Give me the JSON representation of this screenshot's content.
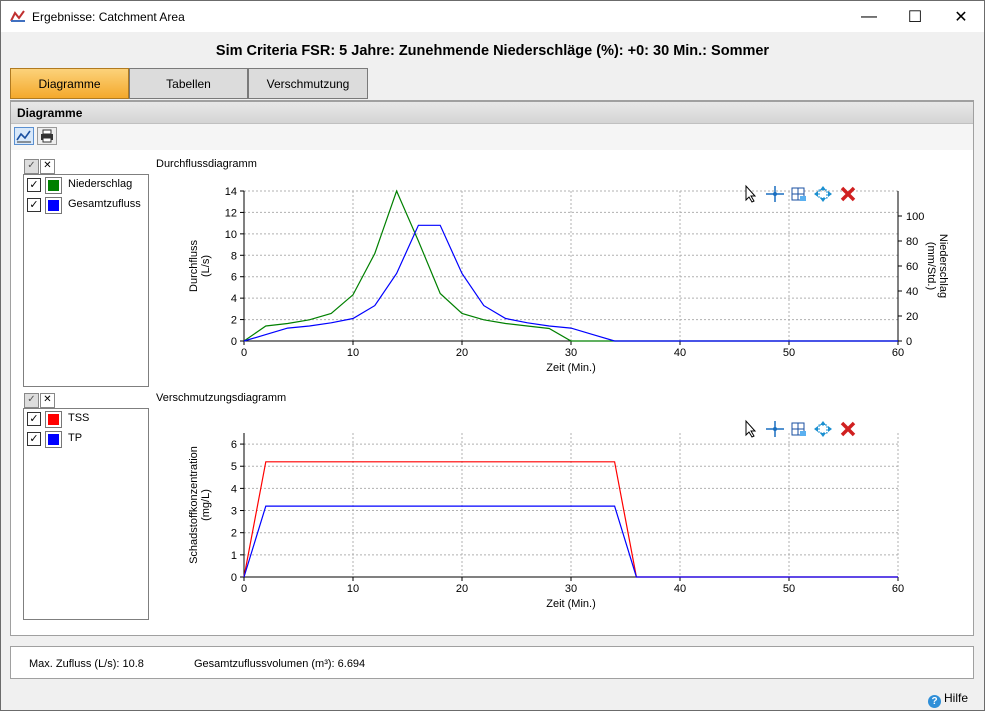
{
  "window": {
    "title": "Ergebnisse: Catchment Area",
    "minimize": "—",
    "maximize": "☐",
    "close": "✕"
  },
  "header": {
    "title": "Sim Criteria FSR: 5 Jahre: Zunehmende Niederschläge (%): +0:  30 Min.: Sommer"
  },
  "tabs": [
    {
      "label": "Diagramme"
    },
    {
      "label": "Tabellen"
    },
    {
      "label": "Verschmutzung"
    }
  ],
  "section": {
    "title": "Diagramme"
  },
  "icons": {
    "line_chart": "line-chart-icon",
    "printer": "printer-icon",
    "pointer": "pointer-icon",
    "crosshair": "crosshair-icon",
    "zoom": "zoom-icon",
    "pan": "pan-icon",
    "close": "close-icon"
  },
  "legend_head": {
    "check": "✓",
    "x": "✕"
  },
  "legends": {
    "flow": [
      {
        "label": "Niederschlag",
        "color": "#008000",
        "check": "✓"
      },
      {
        "label": "Gesamtzufluss",
        "color": "#0000ff",
        "check": "✓"
      }
    ],
    "pollution": [
      {
        "label": "TSS",
        "color": "#ff0000",
        "check": "✓"
      },
      {
        "label": "TP",
        "color": "#0000ff",
        "check": "✓"
      }
    ]
  },
  "chart_data": [
    {
      "type": "line",
      "title": "Durchflussdiagramm",
      "xlabel": "Zeit (Min.)",
      "ylabel": "Durchfluss (L/s)",
      "ylabel_lines": [
        "Durchfluss",
        "(L/s)"
      ],
      "y2label": "Niederschlag (mm/Std.)",
      "y2label_lines": [
        "Niederschlag",
        "(mm/Std.)"
      ],
      "xlim": [
        0,
        60
      ],
      "ylim": [
        0,
        14
      ],
      "y2lim": [
        0,
        120
      ],
      "xticks": [
        0,
        10,
        20,
        30,
        40,
        50,
        60
      ],
      "yticks": [
        0,
        2,
        4,
        6,
        8,
        10,
        12,
        14
      ],
      "y2ticks": [
        0,
        20,
        40,
        60,
        80,
        100
      ],
      "grid": true,
      "series": [
        {
          "name": "Niederschlag",
          "color": "#008000",
          "axis": "y2",
          "x": [
            0,
            2,
            4,
            6,
            8,
            10,
            12,
            14,
            16,
            18,
            20,
            22,
            24,
            26,
            28,
            30,
            32,
            34,
            60
          ],
          "y": [
            0,
            12,
            14,
            17,
            22,
            37,
            70,
            120,
            80,
            38,
            22,
            17,
            14,
            12,
            10,
            0,
            0,
            0,
            0
          ]
        },
        {
          "name": "Gesamtzufluss",
          "color": "#0000ff",
          "axis": "y",
          "x": [
            0,
            2,
            4,
            6,
            8,
            10,
            12,
            14,
            16,
            18,
            20,
            22,
            24,
            26,
            28,
            30,
            32,
            34,
            60
          ],
          "y": [
            0,
            0.6,
            1.2,
            1.4,
            1.7,
            2.1,
            3.3,
            6.3,
            10.8,
            10.8,
            6.3,
            3.3,
            2.1,
            1.7,
            1.4,
            1.2,
            0.6,
            0,
            0
          ]
        }
      ]
    },
    {
      "type": "line",
      "title": "Verschmutzungsdiagramm",
      "xlabel": "Zeit (Min.)",
      "ylabel": "Schadstoffkonzentration (mg/L)",
      "ylabel_lines": [
        "Schadstoffkonzentration",
        "(mg/L)"
      ],
      "xlim": [
        0,
        60
      ],
      "ylim": [
        0,
        6.5
      ],
      "xticks": [
        0,
        10,
        20,
        30,
        40,
        50,
        60
      ],
      "yticks": [
        0,
        1,
        2,
        3,
        4,
        5,
        6
      ],
      "grid": true,
      "series": [
        {
          "name": "TSS",
          "color": "#ff0000",
          "x": [
            0,
            2,
            34,
            36,
            60
          ],
          "y": [
            0,
            5.2,
            5.2,
            0,
            0
          ]
        },
        {
          "name": "TP",
          "color": "#0000ff",
          "x": [
            0,
            2,
            34,
            36,
            60
          ],
          "y": [
            0,
            3.2,
            3.2,
            0,
            0
          ]
        }
      ]
    }
  ],
  "status": {
    "max_flow": "Max. Zufluss (L/s): 10.8",
    "total_volume": "Gesamtzuflussvolumen (m³): 6.694"
  },
  "help": {
    "label": "Hilfe",
    "icon": "?"
  }
}
